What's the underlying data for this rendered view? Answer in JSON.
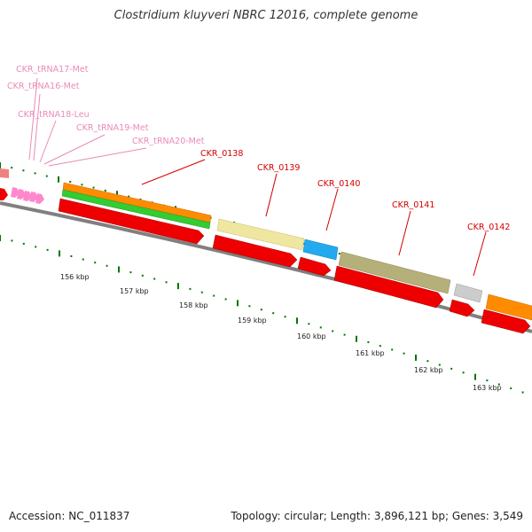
{
  "header": {
    "title": "Clostridium kluyveri NBRC 12016, complete genome"
  },
  "footer": {
    "accession": "Accession: NC_011837",
    "stats": "Topology: circular; Length: 3,896,121 bp; Genes: 3,549"
  },
  "colors": {
    "cds_red": "#ee0000",
    "trna_pink": "#ff88cc",
    "orange": "#ff8c00",
    "green": "#33cc33",
    "yellow": "#efe6a0",
    "blue": "#22aaee",
    "olive": "#b5b07a",
    "grey": "#cccccc",
    "tick_green": "#007700"
  },
  "trna_labels": [
    "CKR_tRNA17-Met",
    "CKR_tRNA16-Met",
    "CKR_tRNA18-Leu",
    "CKR_tRNA19-Met",
    "CKR_tRNA20-Met"
  ],
  "gene_labels": [
    "CKR_0138",
    "CKR_0139",
    "CKR_0140",
    "CKR_0141",
    "CKR_0142"
  ],
  "kbp_labels": [
    "156 kbp",
    "157 kbp",
    "158 kbp",
    "159 kbp",
    "160 kbp",
    "161 kbp",
    "162 kbp",
    "163 kbp"
  ]
}
